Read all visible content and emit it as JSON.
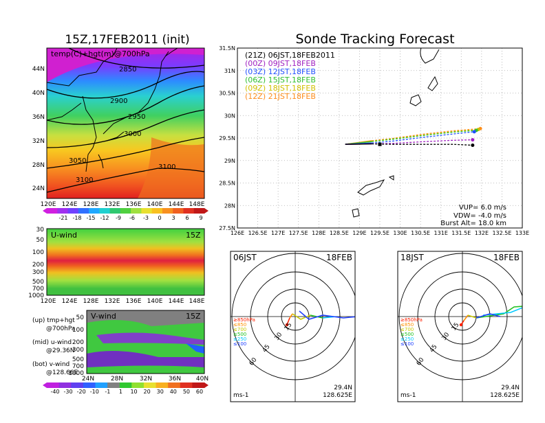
{
  "left_panel": {
    "title": "15Z,17FEB2011 (init)",
    "map": {
      "label": "temp(C)+hgt(m)@700hPa",
      "lat_labels": [
        "44N",
        "40N",
        "36N",
        "32N",
        "28N",
        "24N"
      ],
      "lon_labels": [
        "120E",
        "124E",
        "128E",
        "132E",
        "136E",
        "140E",
        "144E",
        "148E"
      ],
      "contour_labels": [
        "2850",
        "2900",
        "2950",
        "3000",
        "3050",
        "3100",
        "3100"
      ]
    },
    "temp_colorbar": [
      "-21",
      "-18",
      "-15",
      "-12",
      "-9",
      "-6",
      "-3",
      "0",
      "3",
      "6",
      "9"
    ],
    "uwind": {
      "label": "U-wind",
      "time": "15Z",
      "p_labels": [
        "30",
        "50",
        "100",
        "200",
        "300",
        "500",
        "700",
        "1000"
      ],
      "lon_labels": [
        "120E",
        "124E",
        "128E",
        "132E",
        "136E",
        "140E",
        "144E",
        "148E"
      ]
    },
    "vwind": {
      "label": "V-wind",
      "time": "15Z",
      "p_labels": [
        "50",
        "100",
        "200",
        "300",
        "500",
        "700",
        "1000"
      ],
      "lat_labels": [
        "24N",
        "28N",
        "32N",
        "36N",
        "40N"
      ]
    },
    "notes": {
      "up_1": "(up) tmp+hgt",
      "up_2": "@700hPa",
      "mid_1": "(mid) u-wind",
      "mid_2": "@29.36N",
      "bot_1": "(bot) v-wind",
      "bot_2": "@128.66E"
    },
    "wind_colorbar": [
      "-40",
      "-30",
      "-20",
      "-10",
      "-1",
      "1",
      "10",
      "20",
      "30",
      "40",
      "50",
      "60"
    ]
  },
  "right_panel": {
    "title": "Sonde Tracking Forecast",
    "legend": [
      {
        "text": "(21Z) 06JST,18FEB2011",
        "color": "#000000"
      },
      {
        "text": "(00Z) 09JST,18FEB",
        "color": "#a020c0"
      },
      {
        "text": "(03Z) 12JST,18FEB",
        "color": "#2050ff"
      },
      {
        "text": "(06Z) 15JST,18FEB",
        "color": "#30c030"
      },
      {
        "text": "(09Z) 18JST,18FEB",
        "color": "#d0c000"
      },
      {
        "text": "(12Z) 21JST,18FEB",
        "color": "#ff8c1a"
      }
    ],
    "params": {
      "vup": "VUP= 6.0 m/s",
      "vdw": "VDW= -4.0 m/s",
      "burst": "Burst Alt= 18.0 km"
    },
    "lat_labels": [
      "31.5N",
      "31N",
      "30.5N",
      "30N",
      "29.5N",
      "29N",
      "28.5N",
      "28N",
      "27.5N"
    ],
    "lon_labels": [
      "126E",
      "126.5E",
      "127E",
      "127.5E",
      "128E",
      "128.5E",
      "129E",
      "129.5E",
      "130E",
      "130.5E",
      "131E",
      "131.5E",
      "132E",
      "132.5E",
      "133E"
    ]
  },
  "hodographs": [
    {
      "time": "06JST",
      "date": "18FEB",
      "lat": "29.4N",
      "lon": "128.625E",
      "unit": "ms-1",
      "rings": [
        "15",
        "30",
        "45",
        "60"
      ]
    },
    {
      "time": "18JST",
      "date": "18FEB",
      "lat": "29.4N",
      "lon": "128.625E",
      "unit": "ms-1",
      "rings": [
        "15",
        "30",
        "45",
        "60"
      ]
    }
  ],
  "hodo_levels": [
    {
      "text": "≥850hPa",
      "color": "#ff2000"
    },
    {
      "text": "≤850",
      "color": "#ff9000"
    },
    {
      "text": "≤700",
      "color": "#c8c800"
    },
    {
      "text": "≤500",
      "color": "#20c020"
    },
    {
      "text": "≤250",
      "color": "#00c8ff"
    },
    {
      "text": "≤100",
      "color": "#2040ff"
    }
  ],
  "chart_data": [
    {
      "type": "line",
      "title": "Sonde Tracking Forecast",
      "xlim": [
        126,
        133
      ],
      "ylim": [
        27.5,
        31.5
      ],
      "grid": true,
      "legend_position": "top-left",
      "series": [
        {
          "name": "(21Z) 06JST,18FEB2011",
          "color": "#000000",
          "x": [
            128.65,
            129.3,
            129.8,
            130.6,
            131.3,
            131.78
          ],
          "y": [
            29.36,
            29.37,
            29.36,
            29.36,
            29.36,
            29.34
          ]
        },
        {
          "name": "(00Z) 09JST,18FEB",
          "color": "#a020c0",
          "x": [
            128.65,
            129.3,
            129.8,
            130.6,
            131.3,
            131.78
          ],
          "y": [
            29.36,
            29.37,
            29.38,
            29.42,
            29.45,
            29.46
          ]
        },
        {
          "name": "(03Z) 12JST,18FEB",
          "color": "#2050ff",
          "x": [
            128.65,
            129.3,
            129.8,
            130.6,
            131.3,
            131.82
          ],
          "y": [
            29.36,
            29.39,
            29.43,
            29.52,
            29.59,
            29.64
          ]
        },
        {
          "name": "(06Z) 15JST,18FEB",
          "color": "#30c030",
          "x": [
            128.65,
            129.3,
            129.8,
            130.6,
            131.3,
            131.87
          ],
          "y": [
            29.36,
            29.42,
            29.47,
            29.56,
            29.63,
            29.67
          ]
        },
        {
          "name": "(09Z) 18JST,18FEB",
          "color": "#d0c000",
          "x": [
            128.65,
            129.3,
            129.8,
            130.6,
            131.3,
            131.92
          ],
          "y": [
            29.36,
            29.43,
            29.48,
            29.57,
            29.64,
            29.69
          ]
        },
        {
          "name": "(12Z) 21JST,18FEB",
          "color": "#ff8c1a",
          "x": [
            128.65,
            129.3,
            129.8,
            130.6,
            131.3,
            131.97
          ],
          "y": [
            29.36,
            29.44,
            29.49,
            29.59,
            29.66,
            29.71
          ]
        }
      ],
      "burst_points": [
        {
          "x": 129.5,
          "y": 29.36
        }
      ]
    }
  ]
}
